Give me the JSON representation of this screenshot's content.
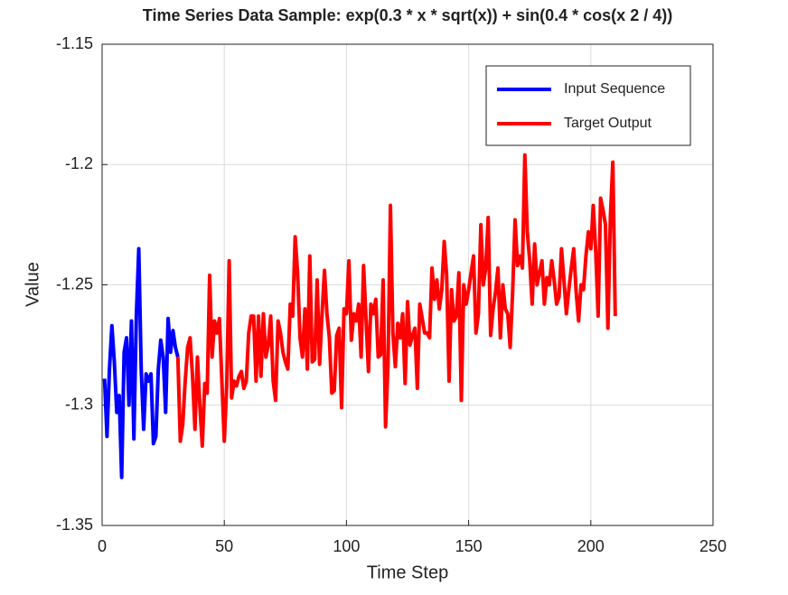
{
  "chart_data": {
    "type": "line",
    "title": "Time Series Data Sample: exp(0.3 * x * sqrt(x)) + sin(0.4 * cos(x  2 / 4))",
    "x_label": "Time Step",
    "y_label": "Value",
    "xlim": [
      0,
      250
    ],
    "xticks": [
      0,
      50,
      100,
      150,
      200,
      250
    ],
    "ylim": [
      -1.35,
      -1.15
    ],
    "yticks": [
      -1.35,
      -1.3,
      -1.25,
      -1.2,
      -1.15
    ],
    "grid": true,
    "legend": "upper right",
    "series": [
      {
        "name": "Input Sequence",
        "color": "#0000ff",
        "x": [
          1,
          2,
          3,
          4,
          5,
          6,
          7,
          8,
          9,
          10,
          11,
          12,
          13,
          14,
          15,
          16,
          17,
          18,
          19,
          20,
          21,
          22,
          23,
          24,
          25,
          26,
          27,
          28,
          29,
          30,
          31
        ],
        "values": [
          -1.289,
          -1.313,
          -1.285,
          -1.267,
          -1.282,
          -1.303,
          -1.296,
          -1.33,
          -1.278,
          -1.272,
          -1.3,
          -1.265,
          -1.314,
          -1.263,
          -1.235,
          -1.285,
          -1.31,
          -1.287,
          -1.29,
          -1.287,
          -1.316,
          -1.313,
          -1.285,
          -1.273,
          -1.28,
          -1.303,
          -1.264,
          -1.278,
          -1.269,
          -1.276,
          -1.28
        ]
      },
      {
        "name": "Target Output",
        "color": "#ff0000",
        "x": [
          31,
          32,
          33,
          34,
          35,
          36,
          37,
          38,
          39,
          40,
          41,
          42,
          43,
          44,
          45,
          46,
          47,
          48,
          49,
          50,
          51,
          52,
          53,
          54,
          55,
          56,
          57,
          58,
          59,
          60,
          61,
          62,
          63,
          64,
          65,
          66,
          67,
          68,
          69,
          70,
          71,
          72,
          73,
          74,
          75,
          76,
          77,
          78,
          79,
          80,
          81,
          82,
          83,
          84,
          85,
          86,
          87,
          88,
          89,
          90,
          91,
          92,
          93,
          94,
          95,
          96,
          97,
          98,
          99,
          100,
          101,
          102,
          103,
          104,
          105,
          106,
          107,
          108,
          109,
          110,
          111,
          112,
          113,
          114,
          115,
          116,
          117,
          118,
          119,
          120,
          121,
          122,
          123,
          124,
          125,
          126,
          127,
          128,
          129,
          130,
          131,
          132,
          133,
          134,
          135,
          136,
          137,
          138,
          139,
          140,
          141,
          142,
          143,
          144,
          145,
          146,
          147,
          148,
          149,
          150,
          151,
          152,
          153,
          154,
          155,
          156,
          157,
          158,
          159,
          160,
          161,
          162,
          163,
          164,
          165,
          166,
          167,
          168,
          169,
          170,
          171,
          172,
          173,
          174,
          175,
          176,
          177,
          178,
          179,
          180,
          181,
          182,
          183,
          184,
          185,
          186,
          187,
          188,
          189,
          190,
          191,
          192,
          193,
          194,
          195,
          196,
          197,
          198,
          199,
          200,
          201,
          202,
          203,
          204,
          205,
          206,
          207,
          208,
          209,
          210
        ],
        "values": [
          -1.28,
          -1.315,
          -1.308,
          -1.29,
          -1.276,
          -1.272,
          -1.288,
          -1.31,
          -1.28,
          -1.3,
          -1.317,
          -1.291,
          -1.295,
          -1.246,
          -1.28,
          -1.265,
          -1.27,
          -1.264,
          -1.29,
          -1.315,
          -1.292,
          -1.24,
          -1.297,
          -1.29,
          -1.292,
          -1.288,
          -1.286,
          -1.293,
          -1.29,
          -1.27,
          -1.263,
          -1.263,
          -1.29,
          -1.263,
          -1.288,
          -1.262,
          -1.28,
          -1.275,
          -1.263,
          -1.29,
          -1.298,
          -1.265,
          -1.27,
          -1.278,
          -1.282,
          -1.285,
          -1.258,
          -1.263,
          -1.23,
          -1.245,
          -1.272,
          -1.28,
          -1.26,
          -1.285,
          -1.238,
          -1.282,
          -1.281,
          -1.248,
          -1.283,
          -1.262,
          -1.244,
          -1.262,
          -1.272,
          -1.295,
          -1.294,
          -1.271,
          -1.268,
          -1.301,
          -1.26,
          -1.262,
          -1.24,
          -1.273,
          -1.262,
          -1.265,
          -1.258,
          -1.28,
          -1.242,
          -1.264,
          -1.286,
          -1.258,
          -1.262,
          -1.256,
          -1.28,
          -1.279,
          -1.248,
          -1.309,
          -1.283,
          -1.217,
          -1.27,
          -1.284,
          -1.266,
          -1.272,
          -1.262,
          -1.291,
          -1.257,
          -1.275,
          -1.271,
          -1.268,
          -1.293,
          -1.258,
          -1.264,
          -1.27,
          -1.27,
          -1.272,
          -1.243,
          -1.256,
          -1.248,
          -1.26,
          -1.252,
          -1.232,
          -1.246,
          -1.29,
          -1.252,
          -1.265,
          -1.263,
          -1.245,
          -1.298,
          -1.25,
          -1.258,
          -1.252,
          -1.245,
          -1.238,
          -1.27,
          -1.262,
          -1.225,
          -1.25,
          -1.243,
          -1.222,
          -1.271,
          -1.26,
          -1.253,
          -1.243,
          -1.272,
          -1.25,
          -1.26,
          -1.262,
          -1.276,
          -1.253,
          -1.223,
          -1.242,
          -1.238,
          -1.243,
          -1.196,
          -1.228,
          -1.24,
          -1.258,
          -1.233,
          -1.25,
          -1.245,
          -1.24,
          -1.258,
          -1.247,
          -1.25,
          -1.24,
          -1.248,
          -1.258,
          -1.255,
          -1.235,
          -1.248,
          -1.262,
          -1.252,
          -1.243,
          -1.235,
          -1.253,
          -1.265,
          -1.25,
          -1.252,
          -1.238,
          -1.228,
          -1.235,
          -1.217,
          -1.236,
          -1.263,
          -1.214,
          -1.219,
          -1.225,
          -1.268,
          -1.222,
          -1.199,
          -1.263
        ]
      }
    ]
  }
}
